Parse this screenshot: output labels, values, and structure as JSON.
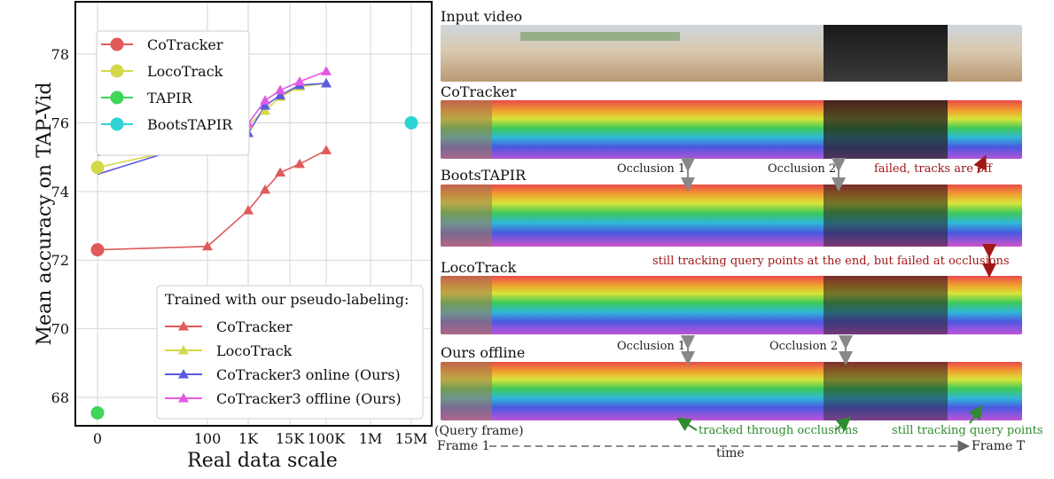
{
  "chart_data": {
    "type": "line",
    "xlabel": "Real data scale",
    "ylabel": "Mean accuracy on TAP-Vid",
    "x_ticks": [
      "0",
      "100",
      "1K",
      "15K",
      "100K",
      "1M",
      "15M"
    ],
    "y_ticks": [
      68,
      70,
      72,
      74,
      76,
      78
    ],
    "ylim": [
      67.2,
      79.5
    ],
    "grid": true,
    "baselines": [
      {
        "name": "CoTracker",
        "x": "0",
        "y": 72.3,
        "color": "#e05a5a"
      },
      {
        "name": "LocoTrack",
        "x": "0",
        "y": 74.7,
        "color": "#d4d94a"
      },
      {
        "name": "TAPIR",
        "x": "0",
        "y": 67.55,
        "color": "#3fd45a"
      },
      {
        "name": "BootsTAPIR",
        "x": "15M",
        "y": 76.0,
        "color": "#2fd4d4"
      }
    ],
    "legend_title": "Trained with our pseudo-labeling:",
    "series": [
      {
        "name": "CoTracker",
        "color": "#e05a5a",
        "x": [
          0,
          100,
          1000,
          3000,
          8000,
          25000,
          100000
        ],
        "y": [
          72.3,
          72.4,
          73.45,
          74.05,
          74.55,
          74.8,
          75.2
        ]
      },
      {
        "name": "LocoTrack",
        "color": "#d4d94a",
        "x": [
          0,
          100,
          1000,
          3000,
          8000,
          25000,
          100000
        ],
        "y": [
          74.7,
          75.4,
          75.95,
          76.35,
          76.75,
          77.05,
          77.15
        ]
      },
      {
        "name": "CoTracker3 online (Ours)",
        "color": "#5a5ae0",
        "x": [
          0,
          100,
          1000,
          3000,
          8000,
          25000,
          100000
        ],
        "y": [
          74.5,
          75.5,
          75.7,
          76.5,
          76.8,
          77.1,
          77.15
        ]
      },
      {
        "name": "CoTracker3 offline (Ours)",
        "color": "#e25ae2",
        "x": [
          0,
          100,
          1000,
          3000,
          8000,
          25000,
          100000
        ],
        "y": [
          75.05,
          75.5,
          75.98,
          76.65,
          76.95,
          77.2,
          77.5
        ]
      }
    ]
  },
  "figure": {
    "rows": [
      {
        "label": "Input video"
      },
      {
        "label": "CoTracker"
      },
      {
        "label": "BootsTAPIR"
      },
      {
        "label": "LocoTrack"
      },
      {
        "label": "Ours offline"
      }
    ],
    "annotations": {
      "occ1a": "Occlusion 1",
      "occ2a": "Occlusion 2",
      "failed": "failed, tracks are off",
      "still_failed": "still tracking query points at the end, but failed at occlusions",
      "occ1b": "Occlusion 1",
      "occ2b": "Occlusion 2",
      "query": "(Query frame)",
      "tracked": "tracked through occlusions",
      "still": "still tracking query points",
      "frame1": "Frame 1",
      "frameT": "Frame T",
      "time": "time"
    },
    "colors": {
      "red_note": "#a01818",
      "green_note": "#2e8b2e"
    }
  }
}
